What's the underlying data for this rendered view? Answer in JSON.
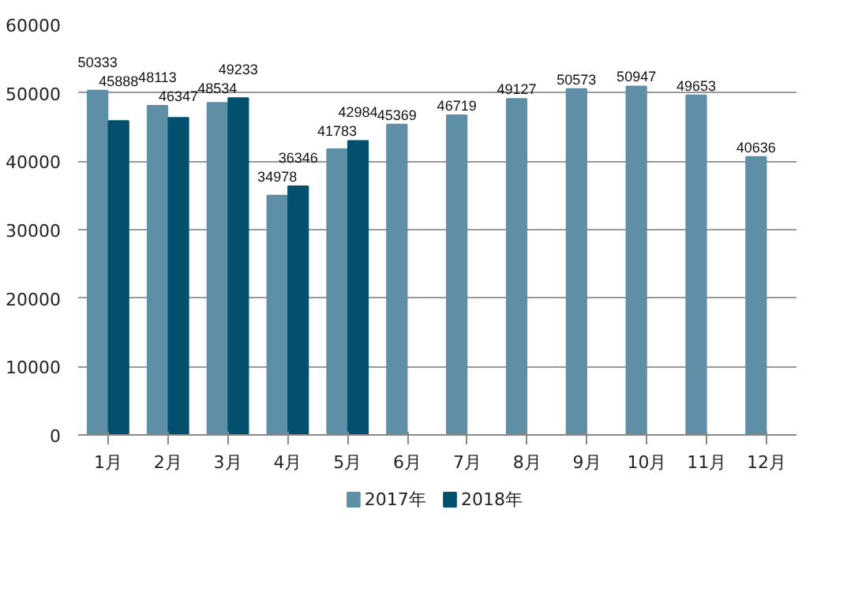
{
  "chart_data": {
    "type": "bar",
    "categories": [
      "1月",
      "2月",
      "3月",
      "4月",
      "5月",
      "6月",
      "7月",
      "8月",
      "9月",
      "10月",
      "11月",
      "12月"
    ],
    "series": [
      {
        "name": "2017年",
        "color": "#5f8fa7",
        "values": [
          50333,
          48113,
          48534,
          34978,
          41783,
          45369,
          46719,
          49127,
          50573,
          50947,
          49653,
          40636
        ]
      },
      {
        "name": "2018年",
        "color": "#02506d",
        "values": [
          45888,
          46347,
          49233,
          36346,
          42984,
          null,
          null,
          null,
          null,
          null,
          null,
          null
        ]
      }
    ],
    "ylim": [
      0,
      60000
    ],
    "yticks": [
      0,
      10000,
      20000,
      30000,
      40000,
      50000,
      60000
    ],
    "grid": "y",
    "legend": "bottom",
    "data_labels": true
  }
}
